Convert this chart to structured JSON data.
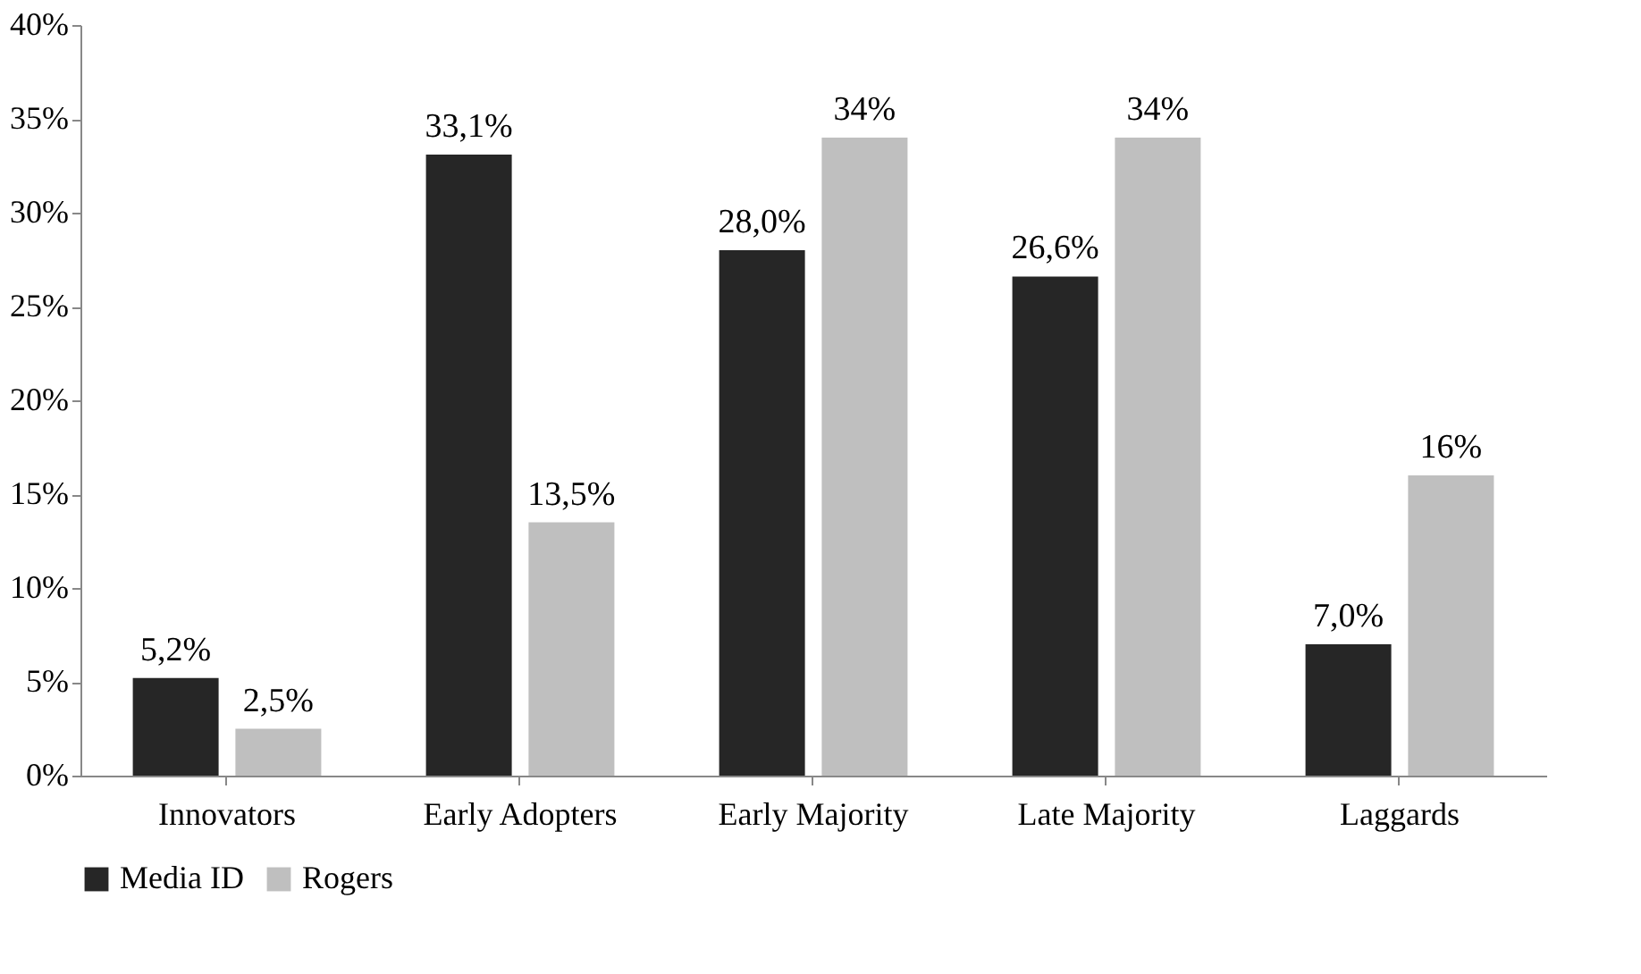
{
  "chart_data": {
    "type": "bar",
    "categories": [
      "Innovators",
      "Early Adopters",
      "Early Majority",
      "Late Majority",
      "Laggards"
    ],
    "series": [
      {
        "name": "Media ID",
        "color": "#262626",
        "values": [
          5.2,
          33.1,
          28.0,
          26.6,
          7.0
        ],
        "value_labels": [
          "5,2%",
          "33,1%",
          "28,0%",
          "26,6%",
          "7,0%"
        ]
      },
      {
        "name": "Rogers",
        "color": "#bfbfbf",
        "values": [
          2.5,
          13.5,
          34,
          34,
          16
        ],
        "value_labels": [
          "2,5%",
          "13,5%",
          "34%",
          "34%",
          "16%"
        ]
      }
    ],
    "ylim": [
      0,
      40
    ],
    "yticks": [
      {
        "value": 0,
        "label": "0%"
      },
      {
        "value": 5,
        "label": "5%"
      },
      {
        "value": 10,
        "label": "10%"
      },
      {
        "value": 15,
        "label": "15%"
      },
      {
        "value": 20,
        "label": "20%"
      },
      {
        "value": 25,
        "label": "25%"
      },
      {
        "value": 30,
        "label": "30%"
      },
      {
        "value": 35,
        "label": "35%"
      },
      {
        "value": 40,
        "label": "40%"
      }
    ],
    "grid": false,
    "legend": "bottom"
  }
}
